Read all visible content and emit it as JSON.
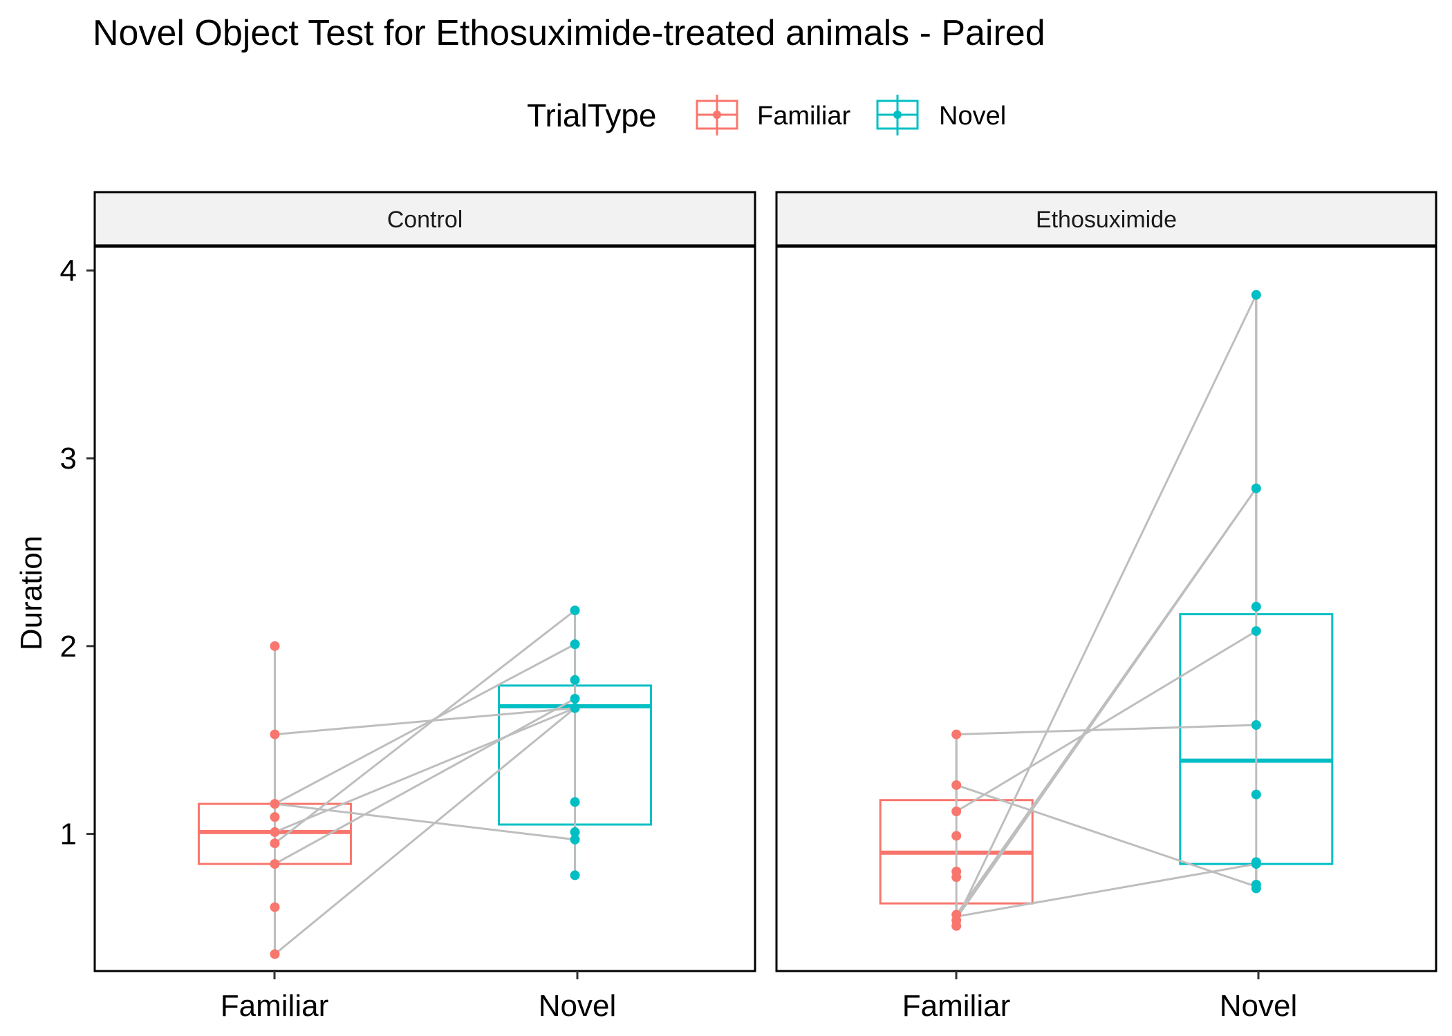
{
  "chart_data": {
    "type": "box",
    "title": "Novel Object Test for Ethosuximide-treated animals - Paired",
    "ylabel": "Duration",
    "xlabel": "",
    "ylim": [
      0.27,
      4.13
    ],
    "yticks": [
      1,
      2,
      3,
      4
    ],
    "categories": [
      "Familiar",
      "Novel"
    ],
    "legend": {
      "title": "TrialType",
      "position": "top",
      "items": [
        {
          "label": "Familiar",
          "color": "#F8766D"
        },
        {
          "label": "Novel",
          "color": "#00BFC4"
        }
      ]
    },
    "colors": {
      "Familiar": "#F8766D",
      "Novel": "#00BFC4",
      "pair_line": "#BEBEBE",
      "strip_fill": "#F2F2F2"
    },
    "grid": false,
    "panels": [
      {
        "name": "Control",
        "boxes": {
          "Familiar": {
            "q1": 0.84,
            "median": 1.01,
            "q3": 1.16,
            "lower_whisker": 0.36,
            "upper_whisker": 2.0
          },
          "Novel": {
            "q1": 1.05,
            "median": 1.68,
            "q3": 1.79,
            "lower_whisker": 0.78,
            "upper_whisker": 2.19
          }
        },
        "points": {
          "Familiar": [
            2.0,
            1.53,
            1.16,
            1.09,
            1.01,
            0.95,
            0.84,
            0.61,
            0.36
          ],
          "Novel": [
            2.19,
            2.01,
            1.82,
            1.72,
            1.67,
            1.17,
            1.01,
            0.97,
            0.78
          ]
        },
        "pairs": [
          [
            1.53,
            1.67
          ],
          [
            1.16,
            0.97
          ],
          [
            1.16,
            2.01
          ],
          [
            0.84,
            1.72
          ],
          [
            1.01,
            1.67
          ],
          [
            0.95,
            2.19
          ],
          [
            0.36,
            1.67
          ]
        ]
      },
      {
        "name": "Ethosuximide",
        "boxes": {
          "Familiar": {
            "q1": 0.63,
            "median": 0.9,
            "q3": 1.18,
            "lower_whisker": 0.51,
            "upper_whisker": 1.53
          },
          "Novel": {
            "q1": 0.84,
            "median": 1.39,
            "q3": 2.17,
            "lower_whisker": 0.71,
            "upper_whisker": 3.87
          }
        },
        "points": {
          "Familiar": [
            1.53,
            1.26,
            1.12,
            0.99,
            0.8,
            0.77,
            0.57,
            0.54,
            0.51
          ],
          "Novel": [
            3.87,
            2.84,
            2.21,
            2.08,
            1.58,
            1.21,
            0.85,
            0.84,
            0.73,
            0.71
          ]
        },
        "pairs": [
          [
            1.53,
            1.58
          ],
          [
            1.26,
            0.72
          ],
          [
            1.12,
            2.08
          ],
          [
            0.54,
            3.87
          ],
          [
            0.57,
            2.84
          ],
          [
            0.55,
            2.84
          ],
          [
            0.56,
            0.84
          ]
        ]
      }
    ]
  }
}
